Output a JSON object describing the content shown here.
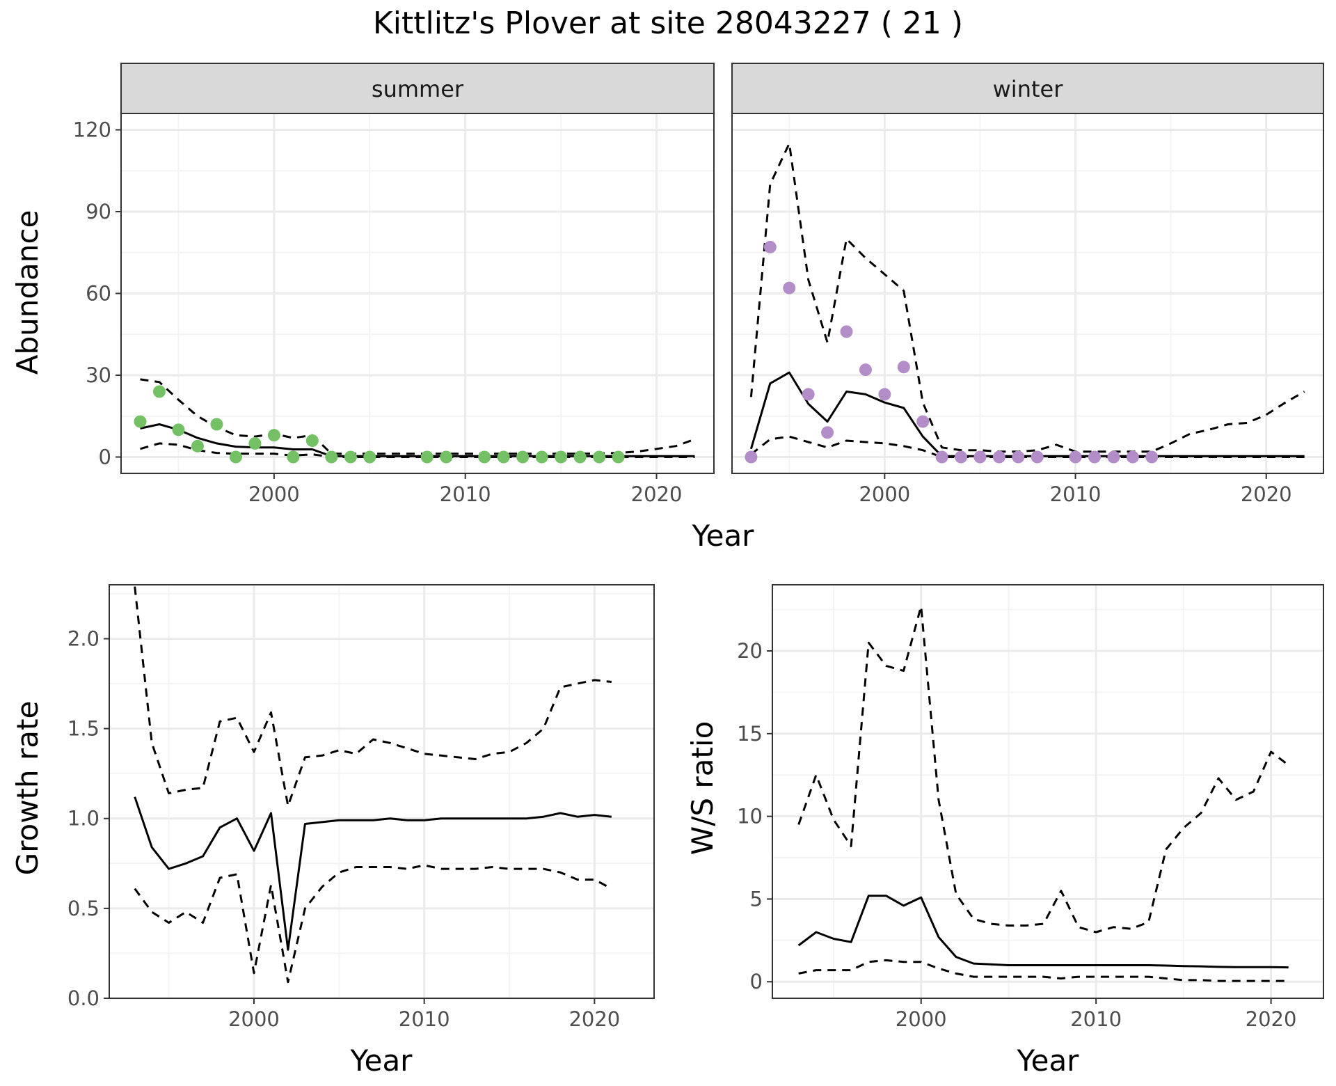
{
  "title": "Kittlitz's Plover at site 28043227 ( 21 )",
  "colors": {
    "summer_points": "#74c165",
    "winter_points": "#b38dc8",
    "grid_major": "#ebebeb",
    "grid_minor": "#f4f4f4",
    "strip_fill": "#d9d9d9",
    "panel_border": "#333333",
    "line": "#000000"
  },
  "chart_data": [
    {
      "type": "line",
      "facet": "summer",
      "xlabel": "Year",
      "ylabel": "Abundance",
      "xlim": [
        1992,
        2023
      ],
      "ylim": [
        -6,
        126
      ],
      "xticks": [
        2000,
        2010,
        2020
      ],
      "yticks": [
        0,
        30,
        60,
        90,
        120
      ],
      "grid": true,
      "points": {
        "x": [
          1993,
          1994,
          1995,
          1996,
          1997,
          1998,
          1999,
          2000,
          2001,
          2002,
          2003,
          2004,
          2005,
          2008,
          2009,
          2011,
          2012,
          2013,
          2014,
          2015,
          2016,
          2017,
          2018
        ],
        "y": [
          13,
          24,
          10,
          4,
          12,
          0,
          5,
          8,
          0,
          6,
          0,
          0,
          0,
          0,
          0,
          0,
          0,
          0,
          0,
          0,
          0,
          0,
          0
        ]
      },
      "series": [
        {
          "style": "solid",
          "x": [
            1993,
            1994,
            1995,
            1996,
            1997,
            1998,
            1999,
            2000,
            2001,
            2002,
            2003,
            2004,
            2005,
            2006,
            2007,
            2008,
            2009,
            2010,
            2011,
            2012,
            2013,
            2014,
            2015,
            2016,
            2017,
            2018,
            2019,
            2020,
            2021,
            2022
          ],
          "values": [
            10.5,
            12,
            10,
            7,
            5,
            3.8,
            3.5,
            3.5,
            2.8,
            2.8,
            0.3,
            0.3,
            0.3,
            0.3,
            0.3,
            0.3,
            0.3,
            0.3,
            0.3,
            0.3,
            0.3,
            0.3,
            0.3,
            0.3,
            0.3,
            0.3,
            0.3,
            0.3,
            0.3,
            0.3
          ]
        },
        {
          "style": "dashed",
          "x": [
            1993,
            1994,
            1995,
            1996,
            1997,
            1998,
            1999,
            2000,
            2001,
            2002,
            2003,
            2004,
            2005,
            2006,
            2007,
            2008,
            2009,
            2010,
            2011,
            2012,
            2013,
            2014,
            2015,
            2016,
            2017,
            2018,
            2019,
            2020,
            2021,
            2022
          ],
          "values": [
            28.5,
            27.5,
            21,
            15,
            11,
            8,
            7.5,
            8.5,
            7,
            8,
            1.2,
            1.2,
            1.2,
            1.2,
            1.2,
            1.2,
            1.2,
            1.2,
            1.2,
            1.2,
            1.2,
            1.2,
            1.2,
            1.2,
            1.3,
            1.5,
            2,
            3,
            4,
            6.5
          ]
        },
        {
          "style": "dashed",
          "x": [
            1993,
            1994,
            1995,
            1996,
            1997,
            1998,
            1999,
            2000,
            2001,
            2002,
            2003,
            2004,
            2005,
            2006,
            2007,
            2008,
            2009,
            2010,
            2011,
            2012,
            2013,
            2014,
            2015,
            2016,
            2017,
            2018,
            2019,
            2020,
            2021,
            2022
          ],
          "values": [
            3,
            5,
            4.5,
            2.5,
            1.5,
            1.2,
            1.2,
            1.2,
            0.5,
            1,
            0,
            0,
            0,
            0,
            0,
            0,
            0,
            0,
            0,
            0,
            0,
            0,
            0,
            0,
            0,
            0,
            0,
            0,
            0,
            0
          ]
        }
      ]
    },
    {
      "type": "line",
      "facet": "winter",
      "xlabel": "Year",
      "ylabel": "Abundance",
      "xlim": [
        1992,
        2023
      ],
      "ylim": [
        -6,
        126
      ],
      "xticks": [
        2000,
        2010,
        2020
      ],
      "yticks": [
        0,
        30,
        60,
        90,
        120
      ],
      "grid": true,
      "points": {
        "x": [
          1993,
          1994,
          1995,
          1996,
          1997,
          1998,
          1999,
          2000,
          2001,
          2002,
          2003,
          2004,
          2005,
          2006,
          2007,
          2008,
          2010,
          2011,
          2012,
          2013,
          2014
        ],
        "y": [
          0,
          77,
          62,
          23,
          9,
          46,
          32,
          23,
          33,
          13,
          0,
          0,
          0,
          0,
          0,
          0,
          0,
          0,
          0,
          0,
          0
        ]
      },
      "series": [
        {
          "style": "solid",
          "x": [
            1993,
            1994,
            1995,
            1996,
            1997,
            1998,
            1999,
            2000,
            2001,
            2002,
            2003,
            2004,
            2005,
            2006,
            2007,
            2008,
            2009,
            2010,
            2011,
            2012,
            2013,
            2014,
            2015,
            2016,
            2017,
            2018,
            2019,
            2020,
            2021,
            2022
          ],
          "values": [
            3,
            27,
            31,
            19.5,
            13,
            24,
            23,
            20,
            18,
            7.5,
            0.3,
            0.3,
            0.3,
            0.3,
            0.3,
            0.3,
            0.3,
            0.3,
            0.3,
            0.3,
            0.3,
            0.3,
            0.3,
            0.3,
            0.3,
            0.3,
            0.3,
            0.3,
            0.3,
            0.3
          ]
        },
        {
          "style": "dashed",
          "x": [
            1993,
            1994,
            1995,
            1996,
            1997,
            1998,
            1999,
            2000,
            2001,
            2002,
            2003,
            2004,
            2005,
            2006,
            2007,
            2008,
            2009,
            2010,
            2011,
            2012,
            2013,
            2014,
            2015,
            2016,
            2017,
            2018,
            2019,
            2020,
            2021,
            2022
          ],
          "values": [
            22,
            100,
            115,
            65,
            42,
            80,
            73,
            67,
            61,
            20,
            3.5,
            2.5,
            2.5,
            2,
            2,
            2.5,
            4.5,
            2,
            2,
            2,
            2,
            2,
            5,
            8.5,
            10,
            12,
            12.5,
            15.5,
            20,
            24
          ]
        },
        {
          "style": "dashed",
          "x": [
            1993,
            1994,
            1995,
            1996,
            1997,
            1998,
            1999,
            2000,
            2001,
            2002,
            2003,
            2004,
            2005,
            2006,
            2007,
            2008,
            2009,
            2010,
            2011,
            2012,
            2013,
            2014,
            2015,
            2016,
            2017,
            2018,
            2019,
            2020,
            2021,
            2022
          ],
          "values": [
            1,
            6.5,
            7.5,
            5.5,
            3.5,
            6,
            5.5,
            5,
            4,
            2.5,
            0,
            0,
            0,
            0,
            0,
            0,
            0,
            0,
            0,
            0,
            0,
            0,
            0,
            0,
            0,
            0,
            0,
            0,
            0,
            0
          ]
        }
      ]
    },
    {
      "type": "line",
      "xlabel": "Year",
      "ylabel": "Growth rate",
      "xlim": [
        1991.5,
        2023.5
      ],
      "ylim": [
        0,
        2.3
      ],
      "xticks": [
        2000,
        2010,
        2020
      ],
      "yticks": [
        0.0,
        0.5,
        1.0,
        1.5,
        2.0
      ],
      "ytick_labels": [
        "0.0",
        "0.5",
        "1.0",
        "1.5",
        "2.0"
      ],
      "grid": true,
      "series": [
        {
          "style": "solid",
          "x": [
            1993,
            1994,
            1995,
            1996,
            1997,
            1998,
            1999,
            2000,
            2001,
            2002,
            2003,
            2004,
            2005,
            2006,
            2007,
            2008,
            2009,
            2010,
            2011,
            2012,
            2013,
            2014,
            2015,
            2016,
            2017,
            2018,
            2019,
            2020,
            2021
          ],
          "values": [
            1.12,
            0.84,
            0.72,
            0.75,
            0.79,
            0.95,
            1.0,
            0.82,
            1.03,
            0.27,
            0.97,
            0.98,
            0.99,
            0.99,
            0.99,
            1.0,
            0.99,
            0.99,
            1.0,
            1.0,
            1.0,
            1.0,
            1.0,
            1.0,
            1.01,
            1.03,
            1.01,
            1.02,
            1.01
          ]
        },
        {
          "style": "dashed",
          "x": [
            1993,
            1994,
            1995,
            1996,
            1997,
            1998,
            1999,
            2000,
            2001,
            2002,
            2003,
            2004,
            2005,
            2006,
            2007,
            2008,
            2009,
            2010,
            2011,
            2012,
            2013,
            2014,
            2015,
            2016,
            2017,
            2018,
            2019,
            2020,
            2021
          ],
          "values": [
            2.29,
            1.42,
            1.14,
            1.16,
            1.17,
            1.54,
            1.56,
            1.37,
            1.59,
            1.07,
            1.34,
            1.35,
            1.38,
            1.36,
            1.44,
            1.42,
            1.39,
            1.36,
            1.35,
            1.34,
            1.33,
            1.36,
            1.37,
            1.42,
            1.5,
            1.73,
            1.75,
            1.77,
            1.76
          ]
        },
        {
          "style": "dashed",
          "x": [
            1993,
            1994,
            1995,
            1996,
            1997,
            1998,
            1999,
            2000,
            2001,
            2002,
            2003,
            2004,
            2005,
            2006,
            2007,
            2008,
            2009,
            2010,
            2011,
            2012,
            2013,
            2014,
            2015,
            2016,
            2017,
            2018,
            2019,
            2020,
            2021
          ],
          "values": [
            0.61,
            0.48,
            0.42,
            0.48,
            0.42,
            0.67,
            0.69,
            0.14,
            0.63,
            0.09,
            0.5,
            0.62,
            0.7,
            0.73,
            0.73,
            0.73,
            0.72,
            0.74,
            0.72,
            0.72,
            0.72,
            0.73,
            0.72,
            0.72,
            0.72,
            0.7,
            0.66,
            0.66,
            0.61
          ]
        }
      ]
    },
    {
      "type": "line",
      "xlabel": "Year",
      "ylabel": "W/S ratio",
      "xlim": [
        1991.5,
        2023
      ],
      "ylim": [
        -1,
        24
      ],
      "xticks": [
        2000,
        2010,
        2020
      ],
      "yticks": [
        0,
        5,
        10,
        15,
        20
      ],
      "grid": true,
      "series": [
        {
          "style": "solid",
          "x": [
            1993,
            1994,
            1995,
            1996,
            1997,
            1998,
            1999,
            2000,
            2001,
            2002,
            2003,
            2004,
            2005,
            2006,
            2007,
            2008,
            2009,
            2010,
            2011,
            2012,
            2013,
            2014,
            2015,
            2016,
            2017,
            2018,
            2019,
            2020,
            2021
          ],
          "values": [
            2.2,
            3,
            2.6,
            2.4,
            5.2,
            5.2,
            4.6,
            5.1,
            2.7,
            1.5,
            1.1,
            1.05,
            1.0,
            1.0,
            1.0,
            1.0,
            1.0,
            1.0,
            1.0,
            1.0,
            1.0,
            0.98,
            0.95,
            0.93,
            0.9,
            0.88,
            0.88,
            0.88,
            0.87
          ]
        },
        {
          "style": "dashed",
          "x": [
            1993,
            1994,
            1995,
            1996,
            1997,
            1998,
            1999,
            2000,
            2001,
            2002,
            2003,
            2004,
            2005,
            2006,
            2007,
            2008,
            2009,
            2010,
            2011,
            2012,
            2013,
            2014,
            2015,
            2016,
            2017,
            2018,
            2019,
            2020,
            2021
          ],
          "values": [
            9.5,
            12.5,
            9.8,
            8.2,
            20.5,
            19.1,
            18.8,
            22.7,
            11,
            5.3,
            3.8,
            3.5,
            3.4,
            3.4,
            3.5,
            5.5,
            3.3,
            3.0,
            3.3,
            3.2,
            3.6,
            8.0,
            9.3,
            10.2,
            12.3,
            11,
            11.5,
            13.9,
            13.1
          ]
        },
        {
          "style": "dashed",
          "x": [
            1993,
            1994,
            1995,
            1996,
            1997,
            1998,
            1999,
            2000,
            2001,
            2002,
            2003,
            2004,
            2005,
            2006,
            2007,
            2008,
            2009,
            2010,
            2011,
            2012,
            2013,
            2014,
            2015,
            2016,
            2017,
            2018,
            2019,
            2020,
            2021
          ],
          "values": [
            0.5,
            0.7,
            0.7,
            0.7,
            1.2,
            1.3,
            1.2,
            1.2,
            0.8,
            0.5,
            0.3,
            0.3,
            0.3,
            0.3,
            0.3,
            0.2,
            0.3,
            0.3,
            0.3,
            0.3,
            0.3,
            0.2,
            0.1,
            0.1,
            0.05,
            0.05,
            0.05,
            0.05,
            0.05
          ]
        }
      ]
    }
  ]
}
